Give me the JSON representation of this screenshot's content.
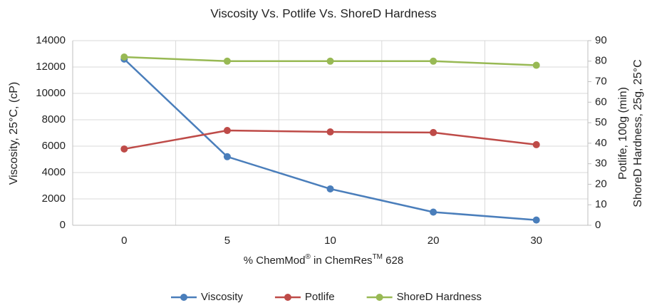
{
  "chart_data": {
    "type": "line",
    "title": "Viscosity Vs. Potlife Vs. ShoreD Hardness",
    "x_label_parts": [
      "% ChemMod",
      "®",
      " in ChemRes",
      "TM",
      " 628"
    ],
    "y_label": "Viscosity, 25°C, (cP)",
    "y2_label_lines": [
      "Potlife, 100g (min)",
      "ShoreD Hardness, 25g, 25°C"
    ],
    "categories": [
      "0",
      "5",
      "10",
      "20",
      "30"
    ],
    "series": [
      {
        "name": "Viscosity",
        "color": "#4a7ebb",
        "values": [
          12600,
          5200,
          2760,
          1000,
          400
        ]
      },
      {
        "name": "Potlife",
        "color": "#be4b48",
        "values": [
          37.2,
          46.2,
          45.5,
          45.2,
          39.3
        ],
        "axis": "y2"
      },
      {
        "name": "ShoreD Hardness",
        "color": "#98b954",
        "values": [
          82,
          80,
          80,
          80,
          78
        ],
        "axis": "y2"
      }
    ],
    "ylim": [
      0,
      14000
    ],
    "yticks": [
      0,
      2000,
      4000,
      6000,
      8000,
      10000,
      12000,
      14000
    ],
    "y2lim": [
      0,
      90
    ],
    "y2ticks": [
      0,
      10,
      20,
      30,
      40,
      50,
      60,
      70,
      80,
      90
    ],
    "grid": true,
    "legend": "bottom"
  }
}
